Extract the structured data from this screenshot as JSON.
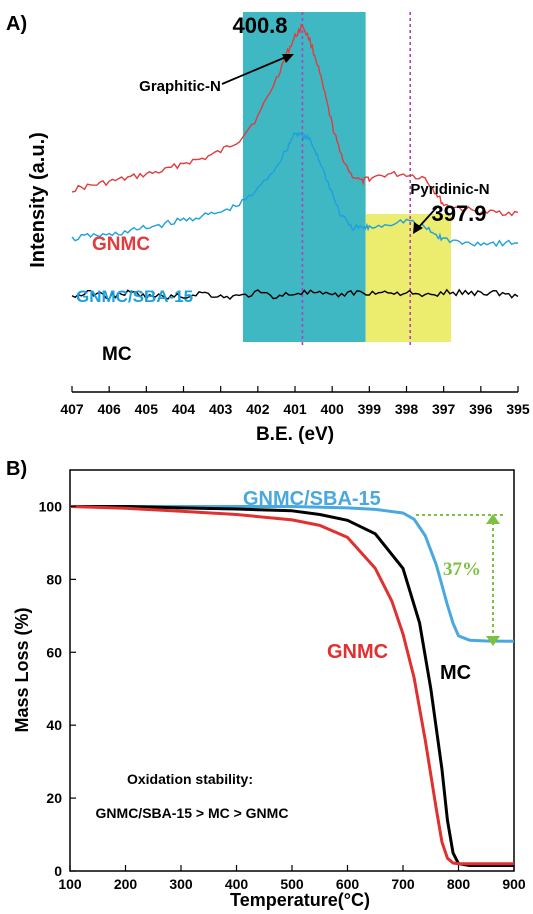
{
  "chart_data": [
    {
      "panel_label": "A)",
      "type": "line",
      "xlabel": "B.E. (eV)",
      "ylabel": "Intensity (a.u.)",
      "xlim": [
        407,
        395
      ],
      "x_ticks": [
        407,
        406,
        405,
        404,
        403,
        402,
        401,
        400,
        399,
        398,
        397,
        396,
        395
      ],
      "y_ticks": [],
      "grid": false,
      "highlight_regions": [
        {
          "x_range": [
            402.4,
            399.1
          ],
          "color": "#3fb8c4"
        },
        {
          "x_range": [
            399.1,
            396.8
          ],
          "color": "#ecec6e"
        }
      ],
      "reference_lines": [
        {
          "x": 400.8,
          "color": "#b040c0"
        },
        {
          "x": 397.9,
          "color": "#b040c0"
        }
      ],
      "annotations": [
        {
          "text": "400.8",
          "x": 400.8
        },
        {
          "text": "Graphitic-N",
          "x": 400.8
        },
        {
          "text": "Pyridinic-N",
          "x": 397.9
        },
        {
          "text": "397.9",
          "x": 397.9
        }
      ],
      "series": [
        {
          "name": "GNMC",
          "color": "#e03c3c",
          "x": [
            407,
            406.5,
            406,
            405.5,
            405,
            404.5,
            404,
            403.5,
            403,
            402.5,
            402,
            401.5,
            401.2,
            401,
            400.8,
            400.6,
            400.4,
            400.2,
            400,
            399.8,
            399.5,
            399.2,
            399,
            398.5,
            398,
            397.5,
            397.2,
            397,
            396.5,
            396,
            395.5,
            395
          ],
          "y": [
            0.53,
            0.54,
            0.55,
            0.56,
            0.57,
            0.58,
            0.6,
            0.61,
            0.63,
            0.66,
            0.72,
            0.82,
            0.89,
            0.93,
            0.96,
            0.92,
            0.86,
            0.78,
            0.7,
            0.63,
            0.57,
            0.55,
            0.56,
            0.57,
            0.57,
            0.56,
            0.52,
            0.49,
            0.48,
            0.47,
            0.47,
            0.47
          ]
        },
        {
          "name": "GNMC/SBA-15",
          "color": "#1ea0dc",
          "x": [
            407,
            406.5,
            406,
            405.5,
            405,
            404.5,
            404,
            403.5,
            403,
            402.5,
            402,
            401.5,
            401.2,
            401,
            400.8,
            400.6,
            400.4,
            400.2,
            400,
            399.8,
            399.5,
            399.2,
            399,
            398.5,
            398,
            397.5,
            397.2,
            397,
            396.5,
            396,
            395.5,
            395
          ],
          "y": [
            0.4,
            0.41,
            0.41,
            0.42,
            0.43,
            0.44,
            0.45,
            0.46,
            0.47,
            0.49,
            0.53,
            0.59,
            0.64,
            0.68,
            0.67,
            0.66,
            0.62,
            0.57,
            0.52,
            0.47,
            0.43,
            0.43,
            0.43,
            0.44,
            0.45,
            0.43,
            0.41,
            0.4,
            0.39,
            0.39,
            0.39,
            0.39
          ]
        },
        {
          "name": "MC",
          "color": "#000000",
          "x": [
            407,
            406.5,
            406,
            405.5,
            405,
            404.5,
            404,
            403.5,
            403,
            402.5,
            402,
            401.5,
            401,
            400.5,
            400,
            399.5,
            399,
            398.5,
            398,
            397.5,
            397,
            396.5,
            396,
            395.5,
            395
          ],
          "y": [
            0.25,
            0.26,
            0.25,
            0.26,
            0.25,
            0.25,
            0.25,
            0.26,
            0.25,
            0.25,
            0.26,
            0.25,
            0.26,
            0.26,
            0.25,
            0.26,
            0.26,
            0.26,
            0.26,
            0.25,
            0.26,
            0.26,
            0.26,
            0.26,
            0.25
          ]
        }
      ]
    },
    {
      "panel_label": "B)",
      "type": "line",
      "xlabel": "Temperature(°C)",
      "ylabel": "Mass Loss (%)",
      "xlim": [
        100,
        900
      ],
      "ylim": [
        0,
        110
      ],
      "x_ticks": [
        100,
        200,
        300,
        400,
        500,
        600,
        700,
        800,
        900
      ],
      "y_ticks": [
        0,
        20,
        40,
        60,
        80,
        100
      ],
      "grid": false,
      "annotations": [
        {
          "text": "37%",
          "color": "#7cc242"
        },
        {
          "text": "Oxidation stability:"
        },
        {
          "text": "GNMC/SBA-15 > MC > GNMC"
        }
      ],
      "series": [
        {
          "name": "GNMC/SBA-15",
          "color": "#4aa8e0",
          "x": [
            100,
            200,
            300,
            400,
            500,
            600,
            650,
            700,
            720,
            740,
            760,
            780,
            790,
            800,
            820,
            850,
            900
          ],
          "y": [
            100,
            100,
            100,
            100,
            100,
            99.6,
            99.2,
            98.2,
            96.5,
            92,
            84,
            73,
            68,
            64.5,
            63.3,
            63.1,
            63
          ]
        },
        {
          "name": "MC",
          "color": "#000000",
          "x": [
            100,
            200,
            300,
            400,
            500,
            550,
            600,
            650,
            700,
            730,
            750,
            770,
            780,
            790,
            800,
            820,
            850,
            900
          ],
          "y": [
            100,
            100,
            99.6,
            99.3,
            98.8,
            97.8,
            96.2,
            92.5,
            83,
            68,
            50,
            28,
            14,
            5,
            2,
            1.5,
            1.5,
            1.5
          ]
        },
        {
          "name": "GNMC",
          "color": "#e03030",
          "x": [
            100,
            200,
            300,
            400,
            500,
            550,
            600,
            650,
            680,
            700,
            720,
            740,
            760,
            770,
            780,
            790,
            800,
            850,
            900
          ],
          "y": [
            100,
            99.5,
            98.7,
            97.8,
            96.3,
            94.8,
            91.5,
            83,
            74,
            65,
            53,
            36,
            17,
            8,
            3.5,
            2.2,
            2,
            2,
            2
          ]
        }
      ]
    }
  ]
}
